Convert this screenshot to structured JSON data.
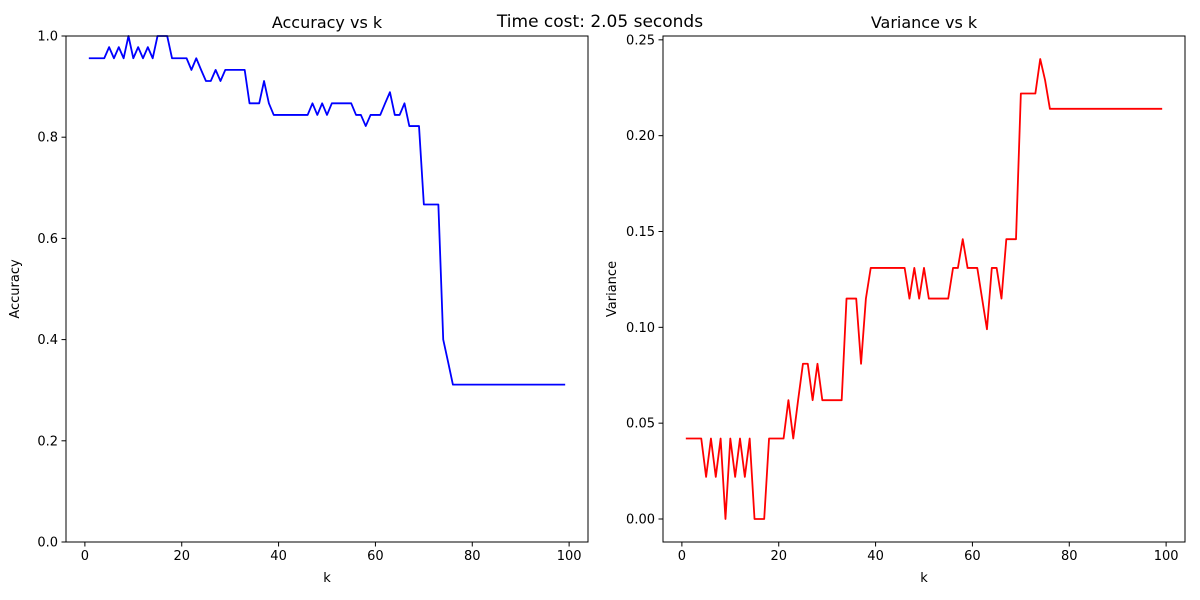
{
  "figure": {
    "suptitle": "Time cost: 2.05 seconds"
  },
  "chart_data": [
    {
      "type": "line",
      "title": "Accuracy vs k",
      "xlabel": "k",
      "ylabel": "Accuracy",
      "xlim": [
        -3.9,
        103.9
      ],
      "ylim": [
        0.0,
        1.0
      ],
      "xticks": [
        0,
        20,
        40,
        60,
        80,
        100
      ],
      "xtick_labels": [
        "0",
        "20",
        "40",
        "60",
        "80",
        "100"
      ],
      "yticks": [
        0.0,
        0.2,
        0.4,
        0.6,
        0.8,
        1.0
      ],
      "ytick_labels": [
        "0.0",
        "0.2",
        "0.4",
        "0.6",
        "0.8",
        "1.0"
      ],
      "grid": false,
      "series": [
        {
          "color": "#0000ff",
          "x": [
            1,
            2,
            3,
            4,
            5,
            6,
            7,
            8,
            9,
            10,
            11,
            12,
            13,
            14,
            15,
            16,
            17,
            18,
            19,
            20,
            21,
            22,
            23,
            24,
            25,
            26,
            27,
            28,
            29,
            30,
            31,
            32,
            33,
            34,
            35,
            36,
            37,
            38,
            39,
            40,
            41,
            42,
            43,
            44,
            45,
            46,
            47,
            48,
            49,
            50,
            51,
            52,
            53,
            54,
            55,
            56,
            57,
            58,
            59,
            60,
            61,
            62,
            63,
            64,
            65,
            66,
            67,
            68,
            69,
            70,
            71,
            72,
            73,
            74,
            75,
            76,
            77,
            78,
            79,
            80,
            81,
            82,
            83,
            84,
            85,
            86,
            87,
            88,
            89,
            90,
            91,
            92,
            93,
            94,
            95,
            96,
            97,
            98,
            99
          ],
          "y": [
            0.956,
            0.956,
            0.956,
            0.956,
            0.978,
            0.956,
            0.978,
            0.956,
            1.0,
            0.956,
            0.978,
            0.956,
            0.978,
            0.956,
            1.0,
            1.0,
            1.0,
            0.956,
            0.956,
            0.956,
            0.956,
            0.933,
            0.956,
            0.933,
            0.911,
            0.911,
            0.933,
            0.911,
            0.933,
            0.933,
            0.933,
            0.933,
            0.933,
            0.867,
            0.867,
            0.867,
            0.911,
            0.867,
            0.844,
            0.844,
            0.844,
            0.844,
            0.844,
            0.844,
            0.844,
            0.844,
            0.867,
            0.844,
            0.867,
            0.844,
            0.867,
            0.867,
            0.867,
            0.867,
            0.867,
            0.844,
            0.844,
            0.822,
            0.844,
            0.844,
            0.844,
            0.867,
            0.889,
            0.844,
            0.844,
            0.867,
            0.822,
            0.822,
            0.822,
            0.667,
            0.667,
            0.667,
            0.667,
            0.4,
            0.356,
            0.311,
            0.311,
            0.311,
            0.311,
            0.311,
            0.311,
            0.311,
            0.311,
            0.311,
            0.311,
            0.311,
            0.311,
            0.311,
            0.311,
            0.311,
            0.311,
            0.311,
            0.311,
            0.311,
            0.311,
            0.311,
            0.311,
            0.311,
            0.311
          ]
        }
      ]
    },
    {
      "type": "line",
      "title": "Variance vs k",
      "xlabel": "k",
      "ylabel": "Variance",
      "xlim": [
        -3.9,
        103.9
      ],
      "ylim": [
        -0.012,
        0.252
      ],
      "xticks": [
        0,
        20,
        40,
        60,
        80,
        100
      ],
      "xtick_labels": [
        "0",
        "20",
        "40",
        "60",
        "80",
        "100"
      ],
      "yticks": [
        0.0,
        0.05,
        0.1,
        0.15,
        0.2,
        0.25
      ],
      "ytick_labels": [
        "0.00",
        "0.05",
        "0.10",
        "0.15",
        "0.20",
        "0.25"
      ],
      "grid": false,
      "series": [
        {
          "color": "#ff0000",
          "x": [
            1,
            2,
            3,
            4,
            5,
            6,
            7,
            8,
            9,
            10,
            11,
            12,
            13,
            14,
            15,
            16,
            17,
            18,
            19,
            20,
            21,
            22,
            23,
            24,
            25,
            26,
            27,
            28,
            29,
            30,
            31,
            32,
            33,
            34,
            35,
            36,
            37,
            38,
            39,
            40,
            41,
            42,
            43,
            44,
            45,
            46,
            47,
            48,
            49,
            50,
            51,
            52,
            53,
            54,
            55,
            56,
            57,
            58,
            59,
            60,
            61,
            62,
            63,
            64,
            65,
            66,
            67,
            68,
            69,
            70,
            71,
            72,
            73,
            74,
            75,
            76,
            77,
            78,
            79,
            80,
            81,
            82,
            83,
            84,
            85,
            86,
            87,
            88,
            89,
            90,
            91,
            92,
            93,
            94,
            95,
            96,
            97,
            98,
            99
          ],
          "y": [
            0.042,
            0.042,
            0.042,
            0.042,
            0.022,
            0.042,
            0.022,
            0.042,
            0.0,
            0.042,
            0.022,
            0.042,
            0.022,
            0.042,
            0.0,
            0.0,
            0.0,
            0.042,
            0.042,
            0.042,
            0.042,
            0.062,
            0.042,
            0.062,
            0.081,
            0.081,
            0.062,
            0.081,
            0.062,
            0.062,
            0.062,
            0.062,
            0.062,
            0.115,
            0.115,
            0.115,
            0.081,
            0.115,
            0.131,
            0.131,
            0.131,
            0.131,
            0.131,
            0.131,
            0.131,
            0.131,
            0.115,
            0.131,
            0.115,
            0.131,
            0.115,
            0.115,
            0.115,
            0.115,
            0.115,
            0.131,
            0.131,
            0.146,
            0.131,
            0.131,
            0.131,
            0.115,
            0.099,
            0.131,
            0.131,
            0.115,
            0.146,
            0.146,
            0.146,
            0.222,
            0.222,
            0.222,
            0.222,
            0.24,
            0.229,
            0.214,
            0.214,
            0.214,
            0.214,
            0.214,
            0.214,
            0.214,
            0.214,
            0.214,
            0.214,
            0.214,
            0.214,
            0.214,
            0.214,
            0.214,
            0.214,
            0.214,
            0.214,
            0.214,
            0.214,
            0.214,
            0.214,
            0.214,
            0.214
          ]
        }
      ]
    }
  ]
}
